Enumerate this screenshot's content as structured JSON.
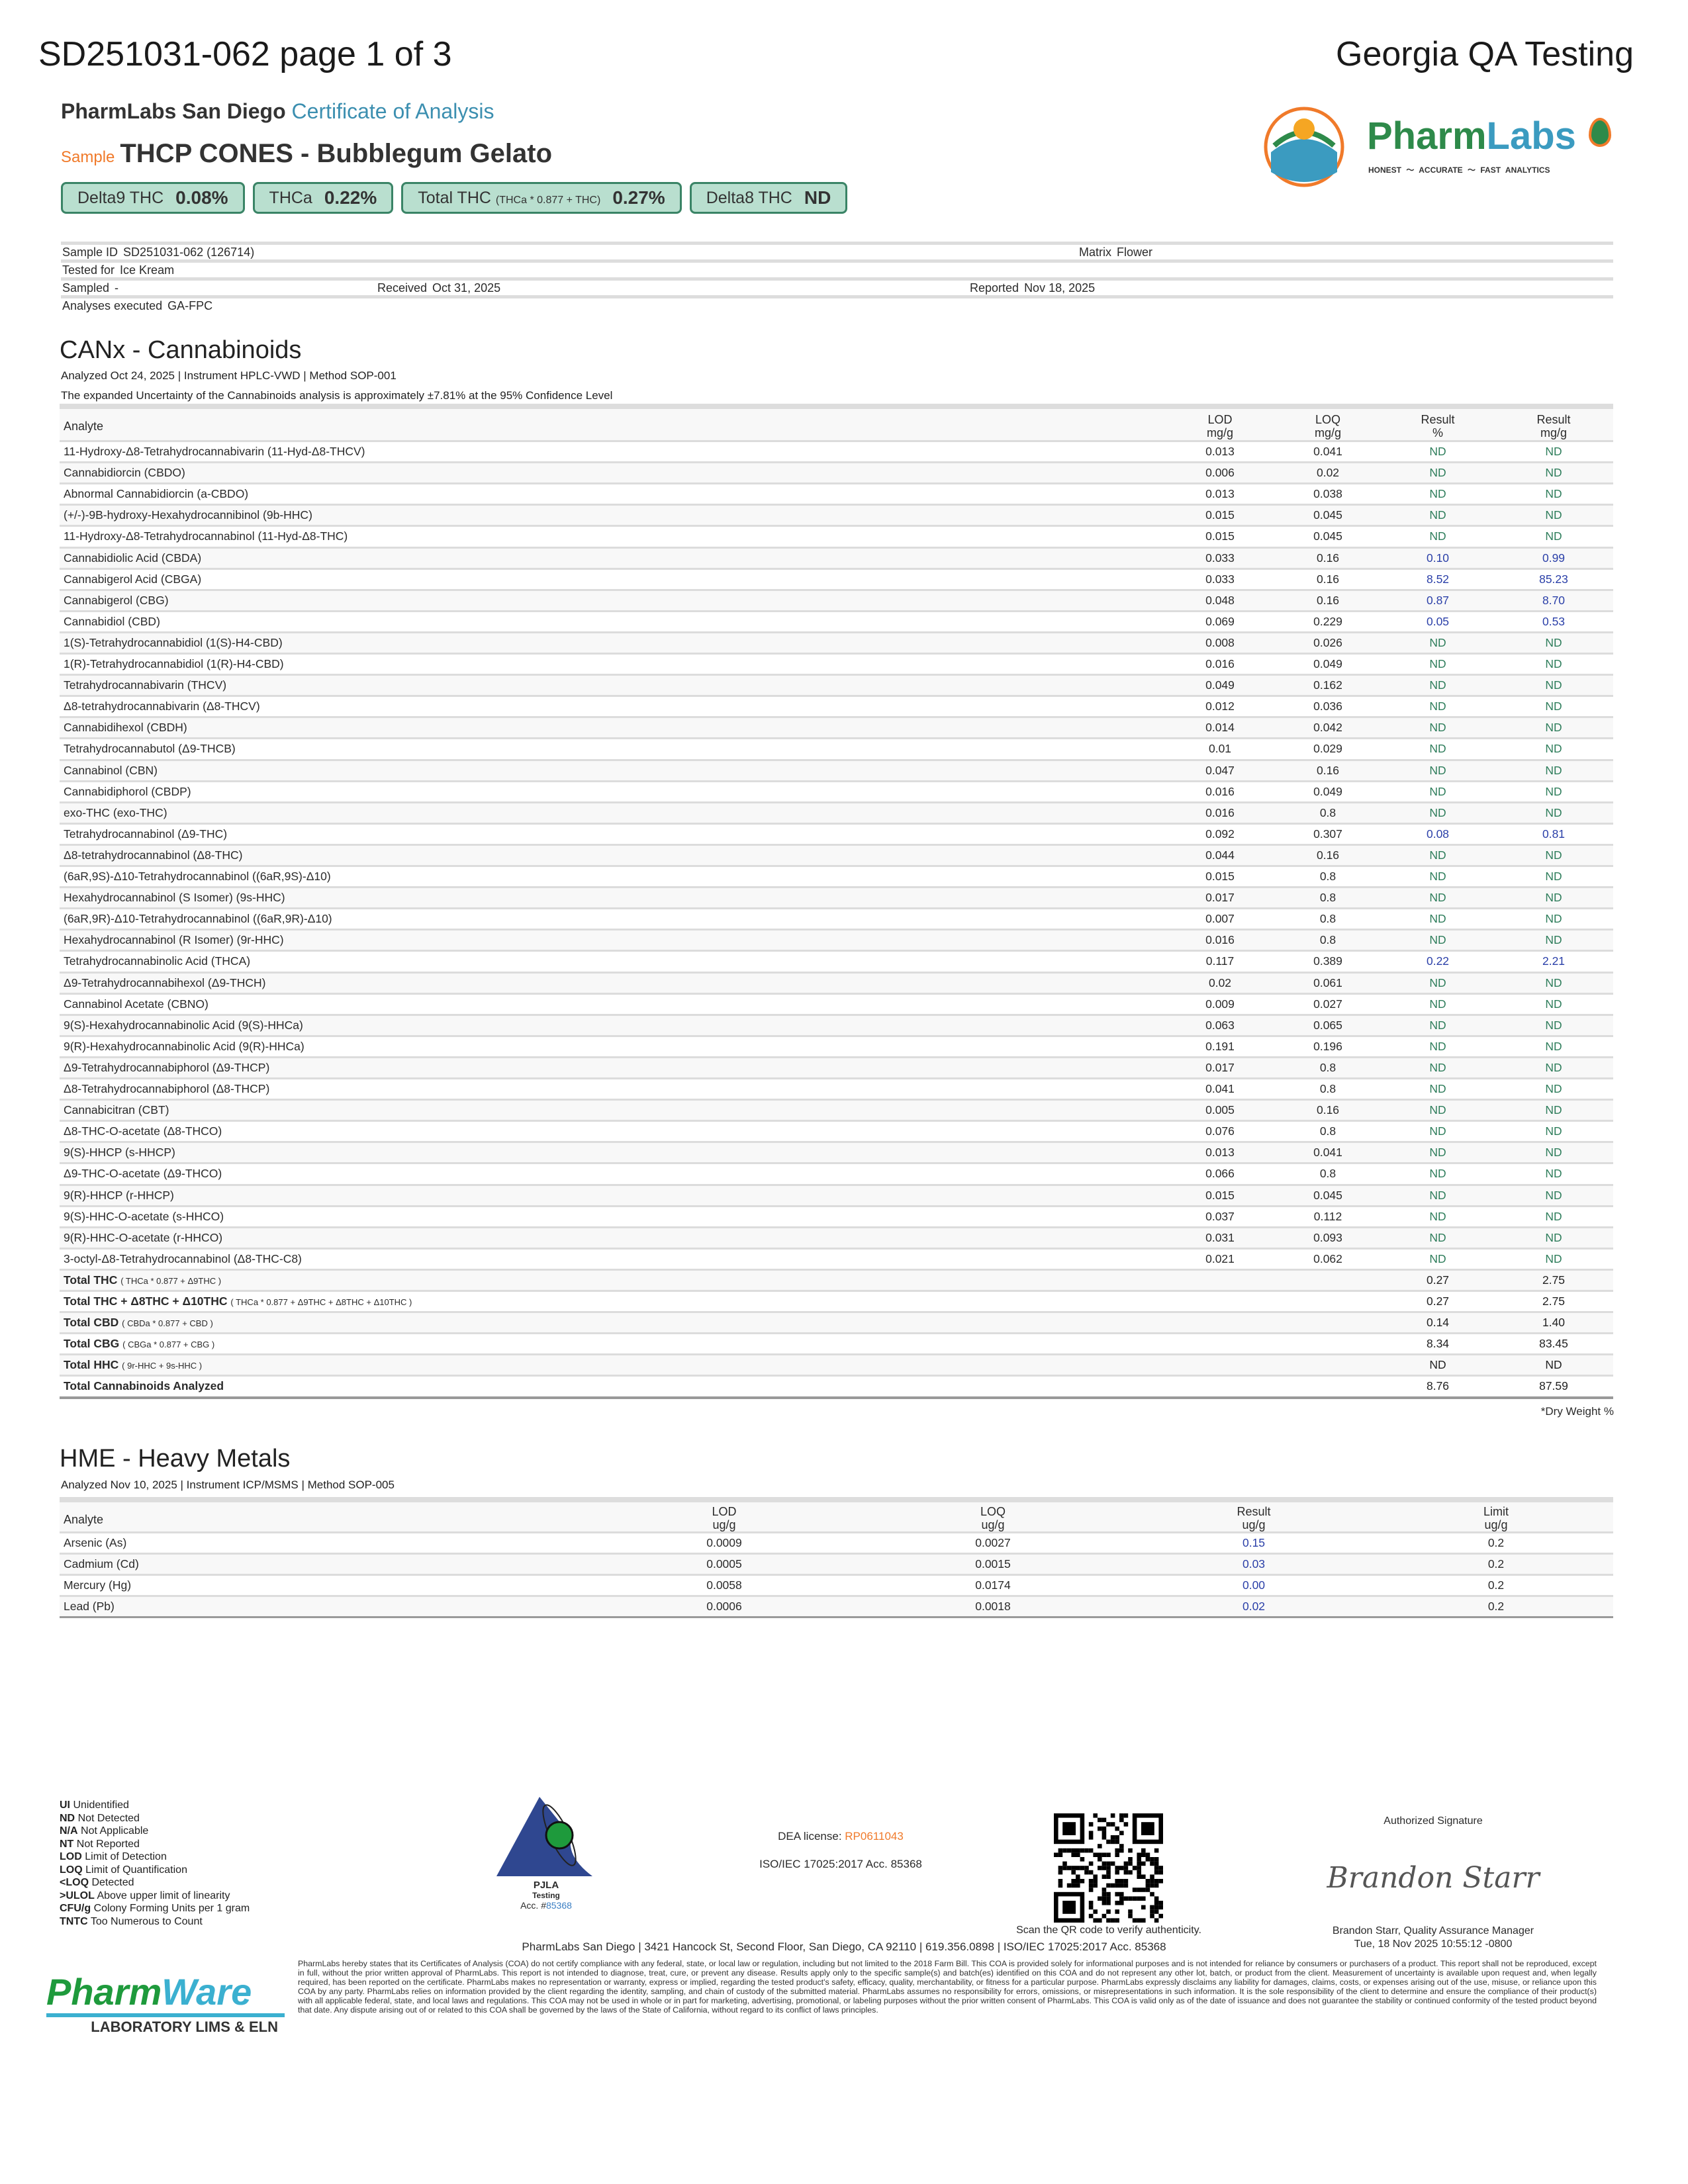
{
  "header": {
    "page_title": "SD251031-062 page 1 of 3",
    "client_title": "Georgia QA Testing",
    "lab": "PharmLabs San Diego",
    "doc_type": "Certificate of Analysis",
    "sample_label": "Sample",
    "sample_name": "THCP CONES - Bubblegum Gelato"
  },
  "logo": {
    "brand": "PharmLabs",
    "brand_part1": "Pharm",
    "brand_part2": "Labs",
    "tagline": [
      "HONEST",
      "ACCURATE",
      "FAST ANALYTICS"
    ],
    "colors": {
      "green": "#2e8a4a",
      "teal": "#3b9bc0",
      "orange": "#f07a2a"
    }
  },
  "badges": [
    {
      "label": "Delta9 THC",
      "formula": "",
      "value": "0.08%"
    },
    {
      "label": "THCa",
      "formula": "",
      "value": "0.22%"
    },
    {
      "label": "Total THC",
      "formula": "(THCa * 0.877 + THC)",
      "value": "0.27%"
    },
    {
      "label": "Delta8 THC",
      "formula": "",
      "value": "ND"
    }
  ],
  "info": {
    "sample_id_label": "Sample ID",
    "sample_id": "SD251031-062 (126714)",
    "matrix_label": "Matrix",
    "matrix": "Flower",
    "tested_for_label": "Tested for",
    "tested_for": "Ice Kream",
    "sampled_label": "Sampled",
    "sampled": "-",
    "received_label": "Received",
    "received": "Oct 31, 2025",
    "reported_label": "Reported",
    "reported": "Nov 18, 2025",
    "analyses_label": "Analyses executed",
    "analyses": "GA-FPC"
  },
  "canx": {
    "title": "CANx - Cannabinoids",
    "meta": "Analyzed Oct 24, 2025  |  Instrument HPLC-VWD  | Method SOP-001",
    "uncertainty": "The expanded Uncertainty of the Cannabinoids analysis is approximately ±7.81% at the 95% Confidence Level",
    "headers": {
      "analyte": "Analyte",
      "lod": "LOD",
      "lod_unit": "mg/g",
      "loq": "LOQ",
      "loq_unit": "mg/g",
      "res_pct": "Result",
      "res_pct_unit": "%",
      "res_mg": "Result",
      "res_mg_unit": "mg/g"
    },
    "rows": [
      {
        "analyte": "11-Hydroxy-Δ8-Tetrahydrocannabivarin (11-Hyd-Δ8-THCV)",
        "lod": "0.013",
        "loq": "0.041",
        "pct": "ND",
        "mg": "ND"
      },
      {
        "analyte": "Cannabidiorcin (CBDO)",
        "lod": "0.006",
        "loq": "0.02",
        "pct": "ND",
        "mg": "ND"
      },
      {
        "analyte": "Abnormal Cannabidiorcin (a-CBDO)",
        "lod": "0.013",
        "loq": "0.038",
        "pct": "ND",
        "mg": "ND"
      },
      {
        "analyte": "(+/-)-9B-hydroxy-Hexahydrocannibinol (9b-HHC)",
        "lod": "0.015",
        "loq": "0.045",
        "pct": "ND",
        "mg": "ND"
      },
      {
        "analyte": "11-Hydroxy-Δ8-Tetrahydrocannabinol (11-Hyd-Δ8-THC)",
        "lod": "0.015",
        "loq": "0.045",
        "pct": "ND",
        "mg": "ND"
      },
      {
        "analyte": "Cannabidiolic Acid (CBDA)",
        "lod": "0.033",
        "loq": "0.16",
        "pct": "0.10",
        "mg": "0.99"
      },
      {
        "analyte": "Cannabigerol Acid (CBGA)",
        "lod": "0.033",
        "loq": "0.16",
        "pct": "8.52",
        "mg": "85.23"
      },
      {
        "analyte": "Cannabigerol (CBG)",
        "lod": "0.048",
        "loq": "0.16",
        "pct": "0.87",
        "mg": "8.70"
      },
      {
        "analyte": "Cannabidiol (CBD)",
        "lod": "0.069",
        "loq": "0.229",
        "pct": "0.05",
        "mg": "0.53"
      },
      {
        "analyte": "1(S)-Tetrahydrocannabidiol (1(S)-H4-CBD)",
        "lod": "0.008",
        "loq": "0.026",
        "pct": "ND",
        "mg": "ND"
      },
      {
        "analyte": "1(R)-Tetrahydrocannabidiol (1(R)-H4-CBD)",
        "lod": "0.016",
        "loq": "0.049",
        "pct": "ND",
        "mg": "ND"
      },
      {
        "analyte": "Tetrahydrocannabivarin (THCV)",
        "lod": "0.049",
        "loq": "0.162",
        "pct": "ND",
        "mg": "ND"
      },
      {
        "analyte": "Δ8-tetrahydrocannabivarin (Δ8-THCV)",
        "lod": "0.012",
        "loq": "0.036",
        "pct": "ND",
        "mg": "ND"
      },
      {
        "analyte": "Cannabidihexol (CBDH)",
        "lod": "0.014",
        "loq": "0.042",
        "pct": "ND",
        "mg": "ND"
      },
      {
        "analyte": "Tetrahydrocannabutol (Δ9-THCB)",
        "lod": "0.01",
        "loq": "0.029",
        "pct": "ND",
        "mg": "ND"
      },
      {
        "analyte": "Cannabinol (CBN)",
        "lod": "0.047",
        "loq": "0.16",
        "pct": "ND",
        "mg": "ND"
      },
      {
        "analyte": "Cannabidiphorol (CBDP)",
        "lod": "0.016",
        "loq": "0.049",
        "pct": "ND",
        "mg": "ND"
      },
      {
        "analyte": "exo-THC (exo-THC)",
        "lod": "0.016",
        "loq": "0.8",
        "pct": "ND",
        "mg": "ND"
      },
      {
        "analyte": "Tetrahydrocannabinol (Δ9-THC)",
        "lod": "0.092",
        "loq": "0.307",
        "pct": "0.08",
        "mg": "0.81"
      },
      {
        "analyte": "Δ8-tetrahydrocannabinol (Δ8-THC)",
        "lod": "0.044",
        "loq": "0.16",
        "pct": "ND",
        "mg": "ND"
      },
      {
        "analyte": "(6aR,9S)-Δ10-Tetrahydrocannabinol ((6aR,9S)-Δ10)",
        "lod": "0.015",
        "loq": "0.8",
        "pct": "ND",
        "mg": "ND"
      },
      {
        "analyte": "Hexahydrocannabinol (S Isomer) (9s-HHC)",
        "lod": "0.017",
        "loq": "0.8",
        "pct": "ND",
        "mg": "ND"
      },
      {
        "analyte": "(6aR,9R)-Δ10-Tetrahydrocannabinol ((6aR,9R)-Δ10)",
        "lod": "0.007",
        "loq": "0.8",
        "pct": "ND",
        "mg": "ND"
      },
      {
        "analyte": "Hexahydrocannabinol (R Isomer) (9r-HHC)",
        "lod": "0.016",
        "loq": "0.8",
        "pct": "ND",
        "mg": "ND"
      },
      {
        "analyte": "Tetrahydrocannabinolic Acid (THCA)",
        "lod": "0.117",
        "loq": "0.389",
        "pct": "0.22",
        "mg": "2.21"
      },
      {
        "analyte": "Δ9-Tetrahydrocannabihexol (Δ9-THCH)",
        "lod": "0.02",
        "loq": "0.061",
        "pct": "ND",
        "mg": "ND"
      },
      {
        "analyte": "Cannabinol Acetate (CBNO)",
        "lod": "0.009",
        "loq": "0.027",
        "pct": "ND",
        "mg": "ND"
      },
      {
        "analyte": "9(S)-Hexahydrocannabinolic Acid (9(S)-HHCa)",
        "lod": "0.063",
        "loq": "0.065",
        "pct": "ND",
        "mg": "ND"
      },
      {
        "analyte": "9(R)-Hexahydrocannabinolic Acid (9(R)-HHCa)",
        "lod": "0.191",
        "loq": "0.196",
        "pct": "ND",
        "mg": "ND"
      },
      {
        "analyte": "Δ9-Tetrahydrocannabiphorol (Δ9-THCP)",
        "lod": "0.017",
        "loq": "0.8",
        "pct": "ND",
        "mg": "ND"
      },
      {
        "analyte": "Δ8-Tetrahydrocannabiphorol (Δ8-THCP)",
        "lod": "0.041",
        "loq": "0.8",
        "pct": "ND",
        "mg": "ND"
      },
      {
        "analyte": "Cannabicitran (CBT)",
        "lod": "0.005",
        "loq": "0.16",
        "pct": "ND",
        "mg": "ND"
      },
      {
        "analyte": "Δ8-THC-O-acetate (Δ8-THCO)",
        "lod": "0.076",
        "loq": "0.8",
        "pct": "ND",
        "mg": "ND"
      },
      {
        "analyte": "9(S)-HHCP (s-HHCP)",
        "lod": "0.013",
        "loq": "0.041",
        "pct": "ND",
        "mg": "ND"
      },
      {
        "analyte": "Δ9-THC-O-acetate (Δ9-THCO)",
        "lod": "0.066",
        "loq": "0.8",
        "pct": "ND",
        "mg": "ND"
      },
      {
        "analyte": "9(R)-HHCP (r-HHCP)",
        "lod": "0.015",
        "loq": "0.045",
        "pct": "ND",
        "mg": "ND"
      },
      {
        "analyte": "9(S)-HHC-O-acetate (s-HHCO)",
        "lod": "0.037",
        "loq": "0.112",
        "pct": "ND",
        "mg": "ND"
      },
      {
        "analyte": "9(R)-HHC-O-acetate (r-HHCO)",
        "lod": "0.031",
        "loq": "0.093",
        "pct": "ND",
        "mg": "ND"
      },
      {
        "analyte": "3-octyl-Δ8-Tetrahydrocannabinol (Δ8-THC-C8)",
        "lod": "0.021",
        "loq": "0.062",
        "pct": "ND",
        "mg": "ND"
      }
    ],
    "totals": [
      {
        "name": "Total THC",
        "formula": "( THCa * 0.877 + Δ9THC )",
        "pct": "0.27",
        "mg": "2.75"
      },
      {
        "name": "Total THC + Δ8THC + Δ10THC",
        "formula": "( THCa * 0.877 + Δ9THC + Δ8THC + Δ10THC )",
        "pct": "0.27",
        "mg": "2.75"
      },
      {
        "name": "Total CBD",
        "formula": "( CBDa * 0.877 + CBD )",
        "pct": "0.14",
        "mg": "1.40"
      },
      {
        "name": "Total CBG",
        "formula": "( CBGa * 0.877 + CBG )",
        "pct": "8.34",
        "mg": "83.45"
      },
      {
        "name": "Total HHC",
        "formula": "( 9r-HHC + 9s-HHC )",
        "pct": "ND",
        "mg": "ND"
      },
      {
        "name": "Total Cannabinoids Analyzed",
        "formula": "",
        "pct": "8.76",
        "mg": "87.59"
      }
    ],
    "footnote": "*Dry Weight %"
  },
  "hme": {
    "title": "HME - Heavy Metals",
    "meta": "Analyzed Nov 10, 2025  |  Instrument ICP/MSMS  | Method SOP-005",
    "headers": {
      "analyte": "Analyte",
      "lod": "LOD",
      "loq": "LOQ",
      "result": "Result",
      "limit": "Limit",
      "unit": "ug/g"
    },
    "rows": [
      {
        "analyte": "Arsenic (As)",
        "lod": "0.0009",
        "loq": "0.0027",
        "result": "0.15",
        "limit": "0.2"
      },
      {
        "analyte": "Cadmium (Cd)",
        "lod": "0.0005",
        "loq": "0.0015",
        "result": "0.03",
        "limit": "0.2"
      },
      {
        "analyte": "Mercury (Hg)",
        "lod": "0.0058",
        "loq": "0.0174",
        "result": "0.00",
        "limit": "0.2"
      },
      {
        "analyte": "Lead (Pb)",
        "lod": "0.0006",
        "loq": "0.0018",
        "result": "0.02",
        "limit": "0.2"
      }
    ]
  },
  "colors": {
    "nd": "#2e7d5b",
    "detected": "#2a3fa8",
    "badge_bg": "#b9dfcf",
    "badge_border": "#3a8466"
  },
  "legend": [
    {
      "abbr": "UI",
      "text": "Unidentified"
    },
    {
      "abbr": "ND",
      "text": "Not Detected"
    },
    {
      "abbr": "N/A",
      "text": "Not Applicable"
    },
    {
      "abbr": "NT",
      "text": "Not Reported"
    },
    {
      "abbr": "LOD",
      "text": "Limit of Detection"
    },
    {
      "abbr": "LOQ",
      "text": "Limit of Quantification"
    },
    {
      "abbr": "<LOQ",
      "text": "Detected"
    },
    {
      "abbr": ">ULOL",
      "text": "Above upper limit of linearity"
    },
    {
      "abbr": "CFU/g",
      "text": "Colony Forming Units per 1 gram"
    },
    {
      "abbr": "TNTC",
      "text": "Too Numerous to Count"
    }
  ],
  "pjla": {
    "name": "PJLA",
    "sub": "Testing",
    "acc_label": "Acc. #",
    "acc": "85368"
  },
  "accreditation": {
    "dea_label": "DEA license:",
    "dea": "RP0611043",
    "iso": "ISO/IEC 17025:2017 Acc. 85368"
  },
  "qr": {
    "caption": "Scan the QR code to verify authenticity."
  },
  "signature": {
    "title": "Authorized Signature",
    "signed_name": "Brandon Starr",
    "name_title": "Brandon Starr, Quality Assurance Manager",
    "timestamp": "Tue, 18 Nov 2025 10:55:12 -0800"
  },
  "footer": {
    "address": "PharmLabs San Diego | 3421 Hancock St, Second Floor, San Diego, CA 92110 | 619.356.0898 | ISO/IEC 17025:2017 Acc. 85368",
    "pharmware": {
      "part1": "Pharm",
      "part2": "Ware",
      "sub": "LABORATORY LIMS & ELN"
    },
    "disclaimer": "PharmLabs hereby states that its Certificates of Analysis (COA) do not certify compliance with any federal, state, or local law or regulation, including but not limited to the 2018 Farm Bill. This COA is provided solely for informational purposes and is not intended for reliance by consumers or purchasers of a product. This report shall not be reproduced, except in full, without the prior written approval of PharmLabs. This report is not intended to diagnose, treat, cure, or prevent any disease. Results apply only to the specific sample(s) and batch(es) identified on this COA and do not represent any other lot, batch, or product from the client. Measurement of uncertainty is available upon request and, when legally required, has been reported on the certificate. PharmLabs makes no representation or warranty, express or implied, regarding the tested product's safety, efficacy, quality, merchantability, or fitness for a particular purpose. PharmLabs expressly disclaims any liability for damages, claims, costs, or expenses arising out of the use, misuse, or reliance upon this COA by any party. PharmLabs relies on information provided by the client regarding the identity, sampling, and chain of custody of the submitted material. PharmLabs assumes no responsibility for errors, omissions, or misrepresentations in such information. It is the sole responsibility of the client to determine and ensure the compliance of their product(s) with all applicable federal, state, and local laws and regulations. This COA may not be used in whole or in part for marketing, advertising, promotional, or labeling purposes without the prior written consent of PharmLabs. This COA is valid only as of the date of issuance and does not guarantee the stability or continued conformity of the tested product beyond that date. Any dispute arising out of or related to this COA shall be governed by the laws of the State of California, without regard to its conflict of laws principles."
  }
}
